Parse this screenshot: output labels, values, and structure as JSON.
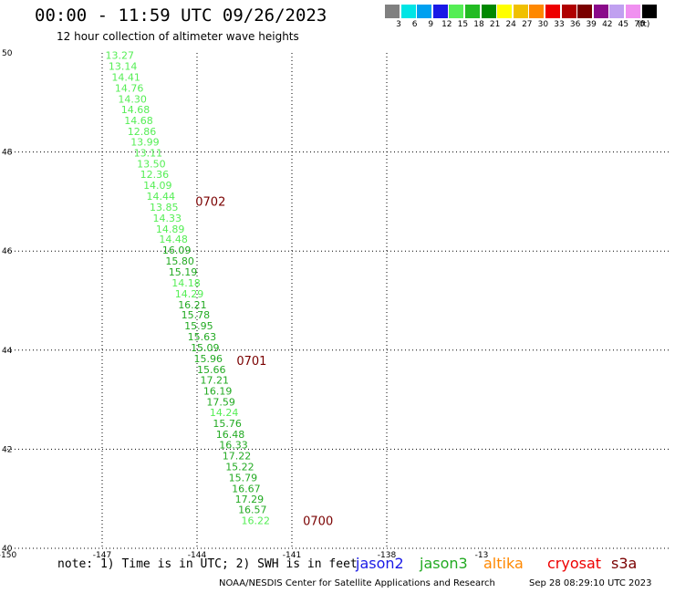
{
  "header": {
    "title": "00:00 - 11:59 UTC 09/26/2023",
    "subtitle": "12 hour collection of altimeter wave heights"
  },
  "legend": {
    "unit": "(ft)",
    "bins": [
      {
        "label": "3",
        "color": "#808080"
      },
      {
        "label": "6",
        "color": "#00e5e5"
      },
      {
        "label": "9",
        "color": "#00a0f0"
      },
      {
        "label": "12",
        "color": "#1a1ae6"
      },
      {
        "label": "15",
        "color": "#55ee55"
      },
      {
        "label": "18",
        "color": "#22bb22"
      },
      {
        "label": "21",
        "color": "#008800"
      },
      {
        "label": "24",
        "color": "#ffff00"
      },
      {
        "label": "27",
        "color": "#f0c000"
      },
      {
        "label": "30",
        "color": "#ff8800"
      },
      {
        "label": "33",
        "color": "#ee0000"
      },
      {
        "label": "36",
        "color": "#b00000"
      },
      {
        "label": "39",
        "color": "#7a0000"
      },
      {
        "label": "42",
        "color": "#8a0a8a"
      },
      {
        "label": "45",
        "color": "#c0a0f0"
      },
      {
        "label": "70",
        "color": "#f090f0"
      },
      {
        "label": "",
        "color": "#000000"
      }
    ]
  },
  "map": {
    "lon_range": [
      -150,
      -129
    ],
    "lat_range": [
      40,
      50
    ],
    "lon_ticks": [
      "-150",
      "-147",
      "-144",
      "-141",
      "-138",
      "-13"
    ],
    "lat_ticks": [
      "50",
      "48",
      "46",
      "44",
      "42",
      "40"
    ],
    "grid": true,
    "colors": {
      "light": "#55ee55",
      "dark": "#22aa22",
      "time": "#7a0000"
    },
    "observations": [
      {
        "lat": 49.95,
        "lon": -146.9,
        "value": "13.27",
        "color": "light"
      },
      {
        "lat": 49.73,
        "lon": -146.8,
        "value": "13.14",
        "color": "light"
      },
      {
        "lat": 49.51,
        "lon": -146.7,
        "value": "14.41",
        "color": "light"
      },
      {
        "lat": 49.29,
        "lon": -146.6,
        "value": "14.76",
        "color": "light"
      },
      {
        "lat": 49.07,
        "lon": -146.5,
        "value": "14.30",
        "color": "light"
      },
      {
        "lat": 48.86,
        "lon": -146.4,
        "value": "14.68",
        "color": "light"
      },
      {
        "lat": 48.64,
        "lon": -146.3,
        "value": "14.68",
        "color": "light"
      },
      {
        "lat": 48.42,
        "lon": -146.2,
        "value": "12.86",
        "color": "light"
      },
      {
        "lat": 48.2,
        "lon": -146.1,
        "value": "13.99",
        "color": "light"
      },
      {
        "lat": 47.98,
        "lon": -146.0,
        "value": "13.11",
        "color": "light"
      },
      {
        "lat": 47.76,
        "lon": -145.9,
        "value": "13.50",
        "color": "light"
      },
      {
        "lat": 47.55,
        "lon": -145.8,
        "value": "12.36",
        "color": "light"
      },
      {
        "lat": 47.33,
        "lon": -145.7,
        "value": "14.09",
        "color": "light"
      },
      {
        "lat": 47.11,
        "lon": -145.6,
        "value": "14.44",
        "color": "light"
      },
      {
        "lat": 46.89,
        "lon": -145.5,
        "value": "13.85",
        "color": "light"
      },
      {
        "lat": 46.67,
        "lon": -145.4,
        "value": "14.33",
        "color": "light"
      },
      {
        "lat": 46.45,
        "lon": -145.3,
        "value": "14.89",
        "color": "light"
      },
      {
        "lat": 46.24,
        "lon": -145.2,
        "value": "14.48",
        "color": "light"
      },
      {
        "lat": 46.02,
        "lon": -145.1,
        "value": "16.09",
        "color": "dark"
      },
      {
        "lat": 45.8,
        "lon": -145.0,
        "value": "15.80",
        "color": "dark"
      },
      {
        "lat": 45.58,
        "lon": -144.9,
        "value": "15.19",
        "color": "dark"
      },
      {
        "lat": 45.36,
        "lon": -144.8,
        "value": "14.18",
        "color": "light"
      },
      {
        "lat": 45.14,
        "lon": -144.7,
        "value": "14.29",
        "color": "light"
      },
      {
        "lat": 44.92,
        "lon": -144.6,
        "value": "16.21",
        "color": "dark"
      },
      {
        "lat": 44.71,
        "lon": -144.5,
        "value": "15.78",
        "color": "dark"
      },
      {
        "lat": 44.49,
        "lon": -144.4,
        "value": "15.95",
        "color": "dark"
      },
      {
        "lat": 44.27,
        "lon": -144.3,
        "value": "15.63",
        "color": "dark"
      },
      {
        "lat": 44.05,
        "lon": -144.2,
        "value": "15.09",
        "color": "dark"
      },
      {
        "lat": 43.83,
        "lon": -144.1,
        "value": "15.96",
        "color": "dark"
      },
      {
        "lat": 43.61,
        "lon": -144.0,
        "value": "15.66",
        "color": "dark"
      },
      {
        "lat": 43.4,
        "lon": -143.9,
        "value": "17.21",
        "color": "dark"
      },
      {
        "lat": 43.18,
        "lon": -143.8,
        "value": "16.19",
        "color": "dark"
      },
      {
        "lat": 42.96,
        "lon": -143.7,
        "value": "17.59",
        "color": "dark"
      },
      {
        "lat": 42.74,
        "lon": -143.6,
        "value": "14.24",
        "color": "light"
      },
      {
        "lat": 42.52,
        "lon": -143.5,
        "value": "15.76",
        "color": "dark"
      },
      {
        "lat": 42.3,
        "lon": -143.4,
        "value": "16.48",
        "color": "dark"
      },
      {
        "lat": 42.09,
        "lon": -143.3,
        "value": "16.33",
        "color": "dark"
      },
      {
        "lat": 41.87,
        "lon": -143.2,
        "value": "17.22",
        "color": "dark"
      },
      {
        "lat": 41.65,
        "lon": -143.1,
        "value": "15.22",
        "color": "dark"
      },
      {
        "lat": 41.43,
        "lon": -143.0,
        "value": "15.79",
        "color": "dark"
      },
      {
        "lat": 41.21,
        "lon": -142.9,
        "value": "16.67",
        "color": "dark"
      },
      {
        "lat": 40.99,
        "lon": -142.8,
        "value": "17.29",
        "color": "dark"
      },
      {
        "lat": 40.78,
        "lon": -142.7,
        "value": "16.57",
        "color": "dark"
      },
      {
        "lat": 40.56,
        "lon": -142.6,
        "value": "16.22",
        "color": "light"
      }
    ],
    "time_marks": [
      {
        "lat": 47.01,
        "lon": -144.05,
        "label": "0702"
      },
      {
        "lat": 43.79,
        "lon": -142.75,
        "label": "0701"
      },
      {
        "lat": 40.56,
        "lon": -140.65,
        "label": "0700"
      }
    ]
  },
  "footer": {
    "note": "note: 1) Time is in UTC; 2) SWH is in feet",
    "satellites": [
      {
        "name": "jason2",
        "color": "#1a1ae6"
      },
      {
        "name": "jason3",
        "color": "#22aa22"
      },
      {
        "name": "altika",
        "color": "#ff8800"
      },
      {
        "name": "cryosat",
        "color": "#ee0000"
      },
      {
        "name": "s3a",
        "color": "#7a0000"
      }
    ],
    "credit": "NOAA/NESDIS Center for Satellite Applications and Research",
    "timestamp": "Sep 28 08:29:10 UTC 2023"
  }
}
